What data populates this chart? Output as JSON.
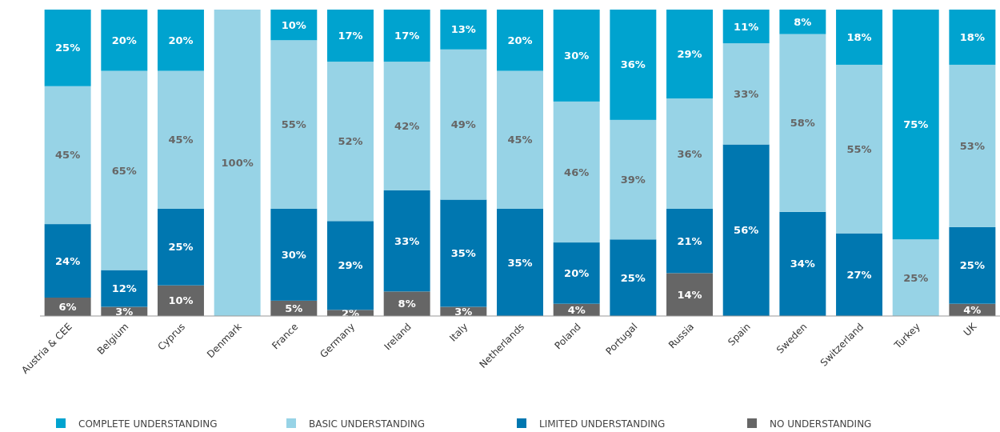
{
  "chart_data": {
    "type": "bar",
    "stacked": true,
    "legend": "bottom",
    "categories": [
      "Austria & CEE",
      "Belgium",
      "Cyprus",
      "Denmark",
      "France",
      "Germany",
      "Ireland",
      "Italy",
      "Netherlands",
      "Poland",
      "Portugal",
      "Russia",
      "Spain",
      "Sweden",
      "Switzerland",
      "Turkey",
      "UK"
    ],
    "series": [
      {
        "name": "NO UNDERSTANDING",
        "color": "#666666",
        "values": [
          6,
          3,
          10,
          null,
          5,
          2,
          8,
          3,
          null,
          4,
          null,
          14,
          null,
          null,
          null,
          null,
          4
        ],
        "value_labels": [
          "6%",
          "3%",
          "10%",
          null,
          "5%",
          "2%",
          "8%",
          "3%",
          null,
          "4%",
          null,
          "14%",
          null,
          null,
          null,
          null,
          "4%"
        ]
      },
      {
        "name": "LIMITED UNDERSTANDING",
        "color": "#0077b0",
        "values": [
          24,
          12,
          25,
          null,
          30,
          29,
          33,
          35,
          35,
          20,
          25,
          21,
          56,
          34,
          27,
          null,
          25
        ],
        "value_labels": [
          "24%",
          "12%",
          "25%",
          null,
          "30%",
          "29%",
          "33%",
          "35%",
          "35%",
          "20%",
          "25%",
          "21%",
          "56%",
          "34%",
          "27%",
          null,
          "25%"
        ]
      },
      {
        "name": "BASIC UNDERSTANDING",
        "color": "#97d3e6",
        "values": [
          45,
          65,
          45,
          100,
          55,
          52,
          42,
          49,
          45,
          46,
          39,
          36,
          33,
          58,
          55,
          25,
          53
        ],
        "value_labels": [
          "45%",
          "65%",
          "45%",
          "100%",
          "55%",
          "52%",
          "42%",
          "49%",
          "45%",
          "46%",
          "39%",
          "36%",
          "33%",
          "58%",
          "55%",
          "25%",
          "53%"
        ]
      },
      {
        "name": "COMPLETE UNDERSTANDING",
        "color": "#00a3cf",
        "values": [
          25,
          20,
          20,
          null,
          10,
          17,
          17,
          13,
          20,
          30,
          36,
          29,
          11,
          8,
          18,
          75,
          18
        ],
        "value_labels": [
          "25%",
          "20%",
          "20%",
          null,
          "10%",
          "17%",
          "17%",
          "13%",
          "20%",
          "30%",
          "36%",
          "29%",
          "11%",
          "8%",
          "18%",
          "75%",
          "18%"
        ]
      }
    ]
  }
}
